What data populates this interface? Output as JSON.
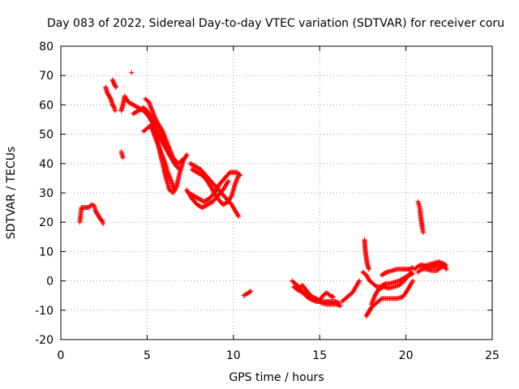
{
  "chart_data": {
    "type": "scatter",
    "title": "Day 083 of 2022, Sidereal Day-to-day VTEC variation (SDTVAR) for receiver coru",
    "xlabel": "GPS time / hours",
    "ylabel": "SDTVAR / TECUs",
    "xlim": [
      0,
      25
    ],
    "ylim": [
      -20,
      80
    ],
    "xticks": [
      "0",
      "5",
      "10",
      "15",
      "20",
      "25"
    ],
    "yticks": [
      "-20",
      "-10",
      "0",
      "10",
      "20",
      "30",
      "40",
      "50",
      "60",
      "70",
      "80"
    ],
    "grid": true,
    "marker": "+",
    "color": "#ff0000",
    "tracks": [
      {
        "name": "arc-1",
        "points": [
          [
            1.1,
            20
          ],
          [
            1.2,
            25
          ],
          [
            1.4,
            25
          ],
          [
            1.6,
            25
          ],
          [
            1.8,
            26
          ],
          [
            1.95,
            25.5
          ],
          [
            2.0,
            24
          ],
          [
            2.1,
            23
          ],
          [
            2.2,
            22
          ],
          [
            2.3,
            21
          ],
          [
            2.4,
            20.5
          ],
          [
            2.45,
            19.5
          ]
        ]
      },
      {
        "name": "arc-2",
        "points": [
          [
            2.6,
            66
          ],
          [
            2.7,
            64
          ],
          [
            2.8,
            63
          ],
          [
            2.9,
            62
          ],
          [
            3.0,
            60
          ],
          [
            3.1,
            59
          ],
          [
            3.15,
            58
          ]
        ]
      },
      {
        "name": "arc-3",
        "points": [
          [
            3.0,
            68.5
          ],
          [
            3.1,
            67
          ],
          [
            3.2,
            66
          ]
        ]
      },
      {
        "name": "arc-4",
        "points": [
          [
            3.5,
            44
          ],
          [
            3.55,
            43
          ],
          [
            3.6,
            42
          ]
        ]
      },
      {
        "name": "arc-5",
        "points": [
          [
            4.1,
            71
          ]
        ]
      },
      {
        "name": "arc-6",
        "points": [
          [
            3.5,
            58
          ],
          [
            3.6,
            60
          ],
          [
            3.7,
            63
          ],
          [
            3.9,
            61
          ],
          [
            4.2,
            60
          ],
          [
            4.5,
            59
          ],
          [
            4.8,
            58
          ],
          [
            5.1,
            56
          ],
          [
            5.3,
            54
          ],
          [
            5.5,
            50
          ],
          [
            5.7,
            45
          ],
          [
            5.9,
            40
          ],
          [
            6.1,
            35
          ],
          [
            6.3,
            31
          ],
          [
            6.5,
            30
          ],
          [
            6.7,
            32
          ],
          [
            6.9,
            37
          ],
          [
            7.1,
            41
          ],
          [
            7.3,
            43
          ]
        ]
      },
      {
        "name": "arc-7",
        "points": [
          [
            4.2,
            57
          ],
          [
            4.5,
            58
          ],
          [
            4.8,
            59
          ],
          [
            5.0,
            58
          ],
          [
            5.2,
            56
          ],
          [
            5.4,
            53
          ],
          [
            5.6,
            50
          ],
          [
            5.8,
            48
          ],
          [
            6.0,
            46
          ],
          [
            6.2,
            44
          ],
          [
            6.4,
            42
          ],
          [
            6.6,
            40
          ]
        ]
      },
      {
        "name": "arc-8",
        "points": [
          [
            4.9,
            62
          ],
          [
            5.1,
            61
          ],
          [
            5.3,
            58
          ],
          [
            5.5,
            55
          ],
          [
            5.7,
            52
          ],
          [
            5.9,
            49
          ],
          [
            6.1,
            46
          ],
          [
            6.3,
            43
          ],
          [
            6.5,
            41
          ],
          [
            6.7,
            39
          ],
          [
            6.9,
            38
          ]
        ]
      },
      {
        "name": "arc-9",
        "points": [
          [
            4.8,
            51
          ],
          [
            5.0,
            52
          ],
          [
            5.2,
            53
          ],
          [
            5.4,
            50
          ],
          [
            5.6,
            47
          ],
          [
            5.8,
            44
          ],
          [
            6.0,
            41
          ],
          [
            6.2,
            37
          ],
          [
            6.4,
            34
          ],
          [
            6.6,
            31
          ]
        ]
      },
      {
        "name": "arc-10",
        "points": [
          [
            5.5,
            55
          ],
          [
            5.7,
            53
          ],
          [
            5.9,
            51
          ],
          [
            6.1,
            48
          ],
          [
            6.3,
            45
          ],
          [
            6.5,
            42
          ],
          [
            6.8,
            40
          ],
          [
            7.0,
            41
          ],
          [
            7.2,
            42
          ]
        ]
      },
      {
        "name": "arc-11",
        "points": [
          [
            7.5,
            40
          ],
          [
            7.8,
            39
          ],
          [
            8.1,
            38
          ],
          [
            8.4,
            36
          ],
          [
            8.7,
            34
          ],
          [
            9.0,
            32
          ],
          [
            9.3,
            30
          ],
          [
            9.6,
            28
          ],
          [
            9.9,
            26
          ],
          [
            10.1,
            24
          ],
          [
            10.3,
            22
          ]
        ]
      },
      {
        "name": "arc-12",
        "points": [
          [
            7.4,
            30
          ],
          [
            7.7,
            29
          ],
          [
            8.0,
            28
          ],
          [
            8.3,
            27
          ],
          [
            8.6,
            28
          ],
          [
            8.9,
            30
          ],
          [
            9.2,
            33
          ],
          [
            9.5,
            35
          ],
          [
            9.8,
            37
          ],
          [
            10.0,
            37
          ],
          [
            10.2,
            37
          ],
          [
            10.4,
            36
          ]
        ]
      },
      {
        "name": "arc-13",
        "points": [
          [
            7.6,
            38
          ],
          [
            7.9,
            37
          ],
          [
            8.2,
            36
          ],
          [
            8.5,
            34
          ],
          [
            8.8,
            31
          ],
          [
            9.1,
            28
          ],
          [
            9.4,
            26
          ],
          [
            9.7,
            27
          ],
          [
            9.9,
            29
          ],
          [
            10.1,
            33
          ],
          [
            10.3,
            36
          ]
        ]
      },
      {
        "name": "arc-14",
        "points": [
          [
            7.3,
            31
          ],
          [
            7.6,
            28
          ],
          [
            7.9,
            26
          ],
          [
            8.2,
            25
          ],
          [
            8.5,
            26
          ],
          [
            8.8,
            27
          ],
          [
            9.1,
            29
          ],
          [
            9.4,
            31
          ],
          [
            9.7,
            34
          ]
        ]
      },
      {
        "name": "arc-15",
        "points": [
          [
            10.6,
            -5
          ],
          [
            10.75,
            -4.5
          ],
          [
            10.9,
            -4
          ],
          [
            11.0,
            -3.5
          ]
        ]
      },
      {
        "name": "arc-16",
        "points": [
          [
            13.4,
            0
          ],
          [
            13.6,
            -1
          ],
          [
            13.8,
            -2
          ],
          [
            14.0,
            -4
          ],
          [
            14.2,
            -5
          ],
          [
            14.4,
            -6
          ],
          [
            14.6,
            -6.5
          ],
          [
            14.8,
            -7
          ],
          [
            15.0,
            -7
          ],
          [
            15.3,
            -7
          ],
          [
            15.6,
            -7
          ],
          [
            15.9,
            -7
          ],
          [
            16.1,
            -7.5
          ]
        ]
      },
      {
        "name": "arc-17",
        "points": [
          [
            13.5,
            -2
          ],
          [
            13.7,
            -3
          ],
          [
            13.9,
            -3.5
          ],
          [
            14.1,
            -4
          ],
          [
            14.3,
            -5.5
          ],
          [
            14.5,
            -6
          ],
          [
            14.7,
            -6.5
          ],
          [
            15.0,
            -6.5
          ],
          [
            15.2,
            -5
          ],
          [
            15.4,
            -4
          ],
          [
            15.6,
            -5
          ],
          [
            15.8,
            -5.5
          ]
        ]
      },
      {
        "name": "arc-18",
        "points": [
          [
            13.6,
            -1
          ],
          [
            13.8,
            -2.5
          ],
          [
            14.0,
            -1.5
          ],
          [
            14.2,
            -3
          ],
          [
            14.4,
            -4.5
          ],
          [
            14.6,
            -5.5
          ],
          [
            14.8,
            -6
          ],
          [
            15.1,
            -7.5
          ],
          [
            15.4,
            -8
          ],
          [
            15.7,
            -8
          ],
          [
            16.0,
            -8
          ],
          [
            16.2,
            -8.5
          ]
        ]
      },
      {
        "name": "arc-19",
        "points": [
          [
            16.3,
            -7
          ],
          [
            16.5,
            -6
          ],
          [
            16.7,
            -5
          ],
          [
            16.9,
            -4
          ],
          [
            17.1,
            -2
          ],
          [
            17.3,
            0
          ]
        ]
      },
      {
        "name": "arc-20",
        "points": [
          [
            17.6,
            14
          ],
          [
            17.62,
            12
          ],
          [
            17.65,
            10
          ],
          [
            17.7,
            8
          ],
          [
            17.75,
            6
          ],
          [
            17.85,
            4
          ]
        ]
      },
      {
        "name": "arc-21",
        "points": [
          [
            17.5,
            3
          ],
          [
            17.7,
            2
          ],
          [
            17.9,
            0
          ],
          [
            18.1,
            -1
          ],
          [
            18.3,
            -2
          ],
          [
            18.5,
            -2
          ],
          [
            18.8,
            -1
          ],
          [
            19.0,
            -1
          ],
          [
            19.3,
            -0.5
          ],
          [
            19.6,
            0
          ],
          [
            19.9,
            1
          ],
          [
            20.2,
            2
          ],
          [
            20.4,
            2.5
          ]
        ]
      },
      {
        "name": "arc-22",
        "points": [
          [
            17.7,
            -12
          ],
          [
            17.8,
            -11
          ],
          [
            17.9,
            -10
          ],
          [
            18.0,
            -9
          ],
          [
            18.2,
            -8
          ],
          [
            18.4,
            -7
          ],
          [
            18.6,
            -6
          ],
          [
            18.9,
            -6
          ],
          [
            19.2,
            -6
          ],
          [
            19.5,
            -6
          ],
          [
            19.8,
            -5.5
          ],
          [
            20.0,
            -4
          ],
          [
            20.2,
            -2
          ],
          [
            20.4,
            0
          ]
        ]
      },
      {
        "name": "arc-23",
        "points": [
          [
            18.6,
            2
          ],
          [
            18.9,
            3
          ],
          [
            19.2,
            3.5
          ],
          [
            19.5,
            4
          ],
          [
            19.8,
            4
          ],
          [
            20.0,
            4
          ],
          [
            20.2,
            4
          ],
          [
            20.4,
            4.5
          ]
        ]
      },
      {
        "name": "arc-24",
        "points": [
          [
            18.0,
            -8
          ],
          [
            18.2,
            -5
          ],
          [
            18.4,
            -3
          ],
          [
            18.7,
            -2
          ],
          [
            19.0,
            -2.5
          ],
          [
            19.3,
            -2
          ],
          [
            19.6,
            -1.5
          ],
          [
            19.9,
            0
          ],
          [
            20.1,
            1.5
          ],
          [
            20.3,
            3
          ]
        ]
      },
      {
        "name": "arc-25",
        "points": [
          [
            20.5,
            4
          ],
          [
            20.7,
            5
          ],
          [
            20.9,
            5.5
          ],
          [
            21.1,
            5
          ],
          [
            21.3,
            4.5
          ],
          [
            21.5,
            4.5
          ],
          [
            21.7,
            5
          ],
          [
            21.9,
            5.5
          ],
          [
            22.1,
            5.5
          ],
          [
            22.3,
            5
          ]
        ]
      },
      {
        "name": "arc-26",
        "points": [
          [
            20.7,
            3
          ],
          [
            20.9,
            4
          ],
          [
            21.2,
            4
          ],
          [
            21.5,
            3.5
          ],
          [
            21.8,
            3.5
          ],
          [
            22.0,
            4.5
          ],
          [
            22.2,
            5
          ],
          [
            22.35,
            4
          ]
        ]
      },
      {
        "name": "arc-27",
        "points": [
          [
            21.0,
            5
          ],
          [
            21.3,
            5.5
          ],
          [
            21.6,
            6
          ],
          [
            21.9,
            6.5
          ],
          [
            22.1,
            6
          ],
          [
            22.3,
            5.5
          ]
        ]
      },
      {
        "name": "arc-28",
        "points": [
          [
            20.7,
            27
          ],
          [
            20.75,
            26
          ],
          [
            20.8,
            25
          ],
          [
            20.82,
            24
          ],
          [
            20.85,
            22
          ],
          [
            20.9,
            20
          ],
          [
            20.95,
            18
          ],
          [
            21.0,
            16.5
          ]
        ]
      }
    ]
  }
}
